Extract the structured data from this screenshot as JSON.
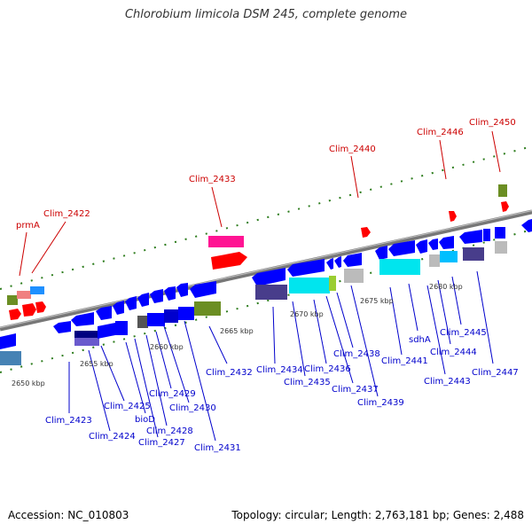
{
  "title": "Chlorobium limicola DSM 245, complete genome",
  "footer": {
    "accession": "Accession: NC_010803",
    "info": "Topology: circular; Length: 2,763,181 bp; Genes: 2,488"
  },
  "colors": {
    "backbone": "#8c8c8c",
    "ticks": "#2e7d1e",
    "label_forward": "#cc0000",
    "label_reverse": "#0000cc"
  },
  "scale_labels": [
    "2650 kbp",
    "2655 kbp",
    "2660 kbp",
    "2665 kbp",
    "2670 kbp",
    "2675 kbp",
    "2680 kbp"
  ],
  "forward_labels": [
    "prmA",
    "Clim_2422",
    "Clim_2433",
    "Clim_2440",
    "Clim_2446",
    "Clim_2450"
  ],
  "reverse_labels": [
    "Clim_2423",
    "Clim_2424",
    "Clim_2425",
    "bioD",
    "Clim_2427",
    "Clim_2428",
    "Clim_2429",
    "Clim_2430",
    "Clim_2431",
    "Clim_2432",
    "Clim_2434",
    "Clim_2435",
    "Clim_2436",
    "Clim_2437",
    "Clim_2438",
    "Clim_2439",
    "Clim_2441",
    "sdhA",
    "Clim_2443",
    "Clim_2444",
    "Clim_2445",
    "Clim_2447"
  ]
}
